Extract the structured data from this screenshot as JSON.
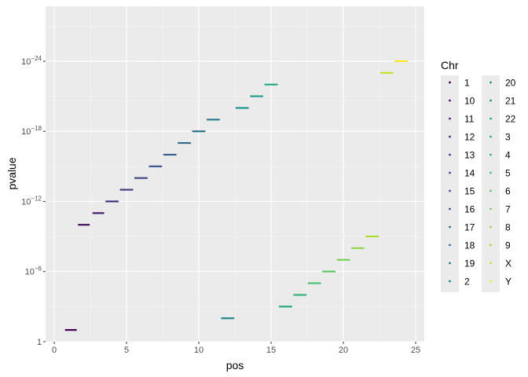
{
  "chart_data": {
    "type": "scatter",
    "xlabel": "pos",
    "ylabel": "pvalue",
    "xlim": [
      -0.6,
      25.6
    ],
    "ylog_lim": [
      0,
      28.7
    ],
    "x_ticks": [
      0,
      5,
      10,
      15,
      20,
      25
    ],
    "y_ticks": [
      {
        "exp": 0,
        "base": "1",
        "sup": ""
      },
      {
        "exp": 6,
        "base": "10",
        "sup": "−6"
      },
      {
        "exp": 12,
        "base": "10",
        "sup": "−12"
      },
      {
        "exp": 18,
        "base": "10",
        "sup": "−18"
      },
      {
        "exp": 24,
        "base": "10",
        "sup": "−24"
      }
    ],
    "grid": true,
    "legend": {
      "title": "Chr",
      "position": "right"
    },
    "series": [
      {
        "name": "1",
        "color": "#440154",
        "x_start": 0.8,
        "x_end": 1.5,
        "neg_log10_p": 1.0
      },
      {
        "name": "10",
        "color": "#471164",
        "x_start": 1.7,
        "x_end": 2.4,
        "neg_log10_p": 10.0
      },
      {
        "name": "11",
        "color": "#481F70",
        "x_start": 2.7,
        "x_end": 3.4,
        "neg_log10_p": 11.0
      },
      {
        "name": "12",
        "color": "#472D7B",
        "x_start": 3.6,
        "x_end": 4.4,
        "neg_log10_p": 12.0
      },
      {
        "name": "13",
        "color": "#443A83",
        "x_start": 4.6,
        "x_end": 5.4,
        "neg_log10_p": 13.0
      },
      {
        "name": "14",
        "color": "#404688",
        "x_start": 5.6,
        "x_end": 6.4,
        "neg_log10_p": 14.0
      },
      {
        "name": "15",
        "color": "#3B528B",
        "x_start": 6.6,
        "x_end": 7.4,
        "neg_log10_p": 15.0
      },
      {
        "name": "16",
        "color": "#365D8D",
        "x_start": 7.6,
        "x_end": 8.4,
        "neg_log10_p": 16.0
      },
      {
        "name": "17",
        "color": "#31688E",
        "x_start": 8.6,
        "x_end": 9.4,
        "neg_log10_p": 17.0
      },
      {
        "name": "18",
        "color": "#2C728E",
        "x_start": 9.6,
        "x_end": 10.4,
        "neg_log10_p": 18.0
      },
      {
        "name": "19",
        "color": "#287C8E",
        "x_start": 10.6,
        "x_end": 11.4,
        "neg_log10_p": 19.0
      },
      {
        "name": "2",
        "color": "#24868E",
        "x_start": 11.6,
        "x_end": 12.4,
        "neg_log10_p": 2.0
      },
      {
        "name": "20",
        "color": "#21908C",
        "x_start": 12.6,
        "x_end": 13.4,
        "neg_log10_p": 20.0
      },
      {
        "name": "21",
        "color": "#1F9A8A",
        "x_start": 13.6,
        "x_end": 14.4,
        "neg_log10_p": 21.0
      },
      {
        "name": "22",
        "color": "#20A486",
        "x_start": 14.6,
        "x_end": 15.4,
        "neg_log10_p": 22.0
      },
      {
        "name": "3",
        "color": "#27AD81",
        "x_start": 15.6,
        "x_end": 16.4,
        "neg_log10_p": 3.0
      },
      {
        "name": "4",
        "color": "#35B779",
        "x_start": 16.6,
        "x_end": 17.4,
        "neg_log10_p": 4.0
      },
      {
        "name": "5",
        "color": "#47C16E",
        "x_start": 17.6,
        "x_end": 18.4,
        "neg_log10_p": 5.0
      },
      {
        "name": "6",
        "color": "#5DC863",
        "x_start": 18.6,
        "x_end": 19.4,
        "neg_log10_p": 6.0
      },
      {
        "name": "7",
        "color": "#75D054",
        "x_start": 19.6,
        "x_end": 20.4,
        "neg_log10_p": 7.0
      },
      {
        "name": "8",
        "color": "#8FD744",
        "x_start": 20.6,
        "x_end": 21.4,
        "neg_log10_p": 8.0
      },
      {
        "name": "9",
        "color": "#AADC32",
        "x_start": 21.6,
        "x_end": 22.4,
        "neg_log10_p": 9.0
      },
      {
        "name": "X",
        "color": "#C7E020",
        "x_start": 22.6,
        "x_end": 23.4,
        "neg_log10_p": 23.0
      },
      {
        "name": "Y",
        "color": "#FDE725",
        "x_start": 23.6,
        "x_end": 24.4,
        "neg_log10_p": 24.0
      }
    ]
  }
}
